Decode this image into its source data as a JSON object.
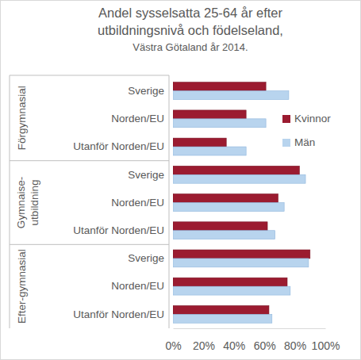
{
  "chart_data": {
    "type": "bar",
    "orientation": "horizontal",
    "title": [
      "Andel sysselsatta 25-64 år efter",
      "utbildningsnivå och födelseland,"
    ],
    "subtitle": "Västra Götaland år 2014.",
    "groups": [
      {
        "label": [
          "Förgymnasial"
        ],
        "span": 3
      },
      {
        "label": [
          "Gymnaise-",
          "utbildning"
        ],
        "span": 3
      },
      {
        "label": [
          "Efter-gymnasial"
        ],
        "span": 3
      }
    ],
    "categories": [
      "Sverige",
      "Norden/EU",
      "Utanför Norden/EU",
      "Sverige",
      "Norden/EU",
      "Utanför Norden/EU",
      "Sverige",
      "Norden/EU",
      "Utanför Norden/EU"
    ],
    "series": [
      {
        "name": "Kvinnor",
        "color": "#9b1b30",
        "values": [
          61,
          48,
          35,
          83,
          69,
          62,
          90,
          75,
          63
        ]
      },
      {
        "name": "Män",
        "color": "#b8d4ee",
        "values": [
          76,
          61,
          48,
          87,
          73,
          67,
          89,
          77,
          65
        ]
      }
    ],
    "xlim": [
      0,
      100
    ],
    "xticks": [
      {
        "value": 0,
        "label": "0%"
      },
      {
        "value": 20,
        "label": "20%"
      },
      {
        "value": 40,
        "label": "40%"
      },
      {
        "value": 60,
        "label": "60%"
      },
      {
        "value": 80,
        "label": "80%"
      },
      {
        "value": 100,
        "label": "100%"
      }
    ],
    "grid": false,
    "legend": "right"
  }
}
